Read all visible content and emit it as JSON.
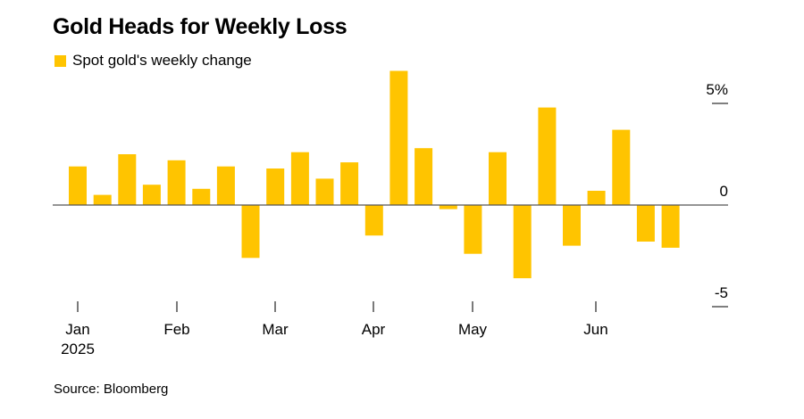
{
  "title": "Gold Heads for Weekly Loss",
  "legend_label": "Spot gold's weekly change",
  "source": "Source: Bloomberg",
  "colors": {
    "bar": "#ffc400",
    "axis": "#333333"
  },
  "chart_data": {
    "type": "bar",
    "title": "Gold Heads for Weekly Loss",
    "series": [
      {
        "name": "Spot gold's weekly change",
        "values": [
          1.9,
          0.5,
          2.5,
          1.0,
          2.2,
          0.8,
          1.9,
          -2.6,
          1.8,
          2.6,
          1.3,
          2.1,
          -1.5,
          6.6,
          2.8,
          -0.2,
          -2.4,
          2.6,
          -3.6,
          4.8,
          -2.0,
          0.7,
          3.7,
          -1.8,
          -2.1
        ]
      }
    ],
    "x_tick_labels": [
      "Jan",
      "Feb",
      "Mar",
      "Apr",
      "May",
      "Jun"
    ],
    "x_tick_sublabel": "2025",
    "y_tick_labels": [
      "5%",
      "0",
      "-5"
    ],
    "y_tick_values": [
      5,
      0,
      -5
    ],
    "ylim": [
      -5,
      5
    ],
    "xlabel": "",
    "ylabel": "",
    "legend": "top-left",
    "grid": false
  }
}
